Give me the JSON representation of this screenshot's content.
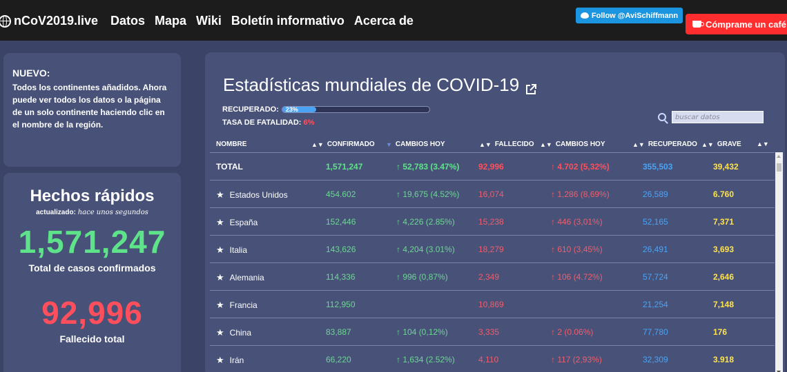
{
  "navbar": {
    "brand": "nCoV2019.live",
    "links": [
      "Datos",
      "Mapa",
      "Wiki",
      "Boletín informativo",
      "Acerca de"
    ],
    "follow_label": "Follow @AviSchiffmann",
    "coffee_label": "Cómprame un café"
  },
  "news": {
    "title": "NUEVO:",
    "body": "Todos los continentes añadidos. Ahora puede ver todos los datos o la página de un solo continente haciendo clic en el nombre de la región."
  },
  "facts": {
    "title": "Hechos rápidos",
    "updated_prefix": "actualizado:",
    "updated_value": "hace unos segundos",
    "confirmed": "1,571,247",
    "confirmed_label": "Total de casos confirmados",
    "deaths": "92,996",
    "deaths_label": "Fallecido total"
  },
  "main": {
    "title": "Estadísticas mundiales de COVID-19",
    "recovered_label": "RECUPERADO:",
    "recovered_pct_text": "23%",
    "recovered_fraction": 0.23,
    "fatality_label": "TASA DE FATALIDAD:",
    "fatality_value": "6%",
    "search_placeholder": "buscar datos"
  },
  "table": {
    "headers": [
      "NOMBRE",
      "CONFIRMADO",
      "CAMBIOS HOY",
      "FALLECIDO",
      "CAMBIOS HOY",
      "RECUPERADO",
      "GRAVE"
    ],
    "total": {
      "name": "TOTAL",
      "confirmed": "1,571,247",
      "conf_change": "↑ 52,783 (3.47%)",
      "deaths": "92,996",
      "death_change": "↑ 4.702 (5,32%)",
      "recovered": "355,503",
      "critical": "39,432"
    },
    "rows": [
      {
        "name": "Estados Unidos",
        "confirmed": "454.602",
        "conf_change": "↑ 19,675 (4.52%)",
        "deaths": "16,074",
        "death_change": "↑ 1,286 (8,69%)",
        "recovered": "26,589",
        "critical": "6.760"
      },
      {
        "name": "España",
        "confirmed": "152,446",
        "conf_change": "↑ 4,226 (2.85%)",
        "deaths": "15,238",
        "death_change": "↑ 446 (3,01%)",
        "recovered": "52,165",
        "critical": "7,371"
      },
      {
        "name": "Italia",
        "confirmed": "143,626",
        "conf_change": "↑ 4,204 (3.01%)",
        "deaths": "18,279",
        "death_change": "↑ 610 (3,45%)",
        "recovered": "26,491",
        "critical": "3,693"
      },
      {
        "name": "Alemania",
        "confirmed": "114,336",
        "conf_change": "↑ 996 (0,87%)",
        "deaths": "2,349",
        "death_change": "↑ 106 (4.72%)",
        "recovered": "57,724",
        "critical": "2,646"
      },
      {
        "name": "Francia",
        "confirmed": "112,950",
        "conf_change": "",
        "deaths": "10,869",
        "death_change": "",
        "recovered": "21,254",
        "critical": "7,148"
      },
      {
        "name": "China",
        "confirmed": "83,887",
        "conf_change": "↑ 104 (0,12%)",
        "deaths": "3,335",
        "death_change": "↑ 2 (0.06%)",
        "recovered": "77,780",
        "critical": "176"
      },
      {
        "name": "Irán",
        "confirmed": "66,220",
        "conf_change": "↑ 1,634 (2.52%)",
        "deaths": "4,110",
        "death_change": "↑ 117 (2,93%)",
        "recovered": "32,309",
        "critical": "3.918"
      }
    ]
  }
}
